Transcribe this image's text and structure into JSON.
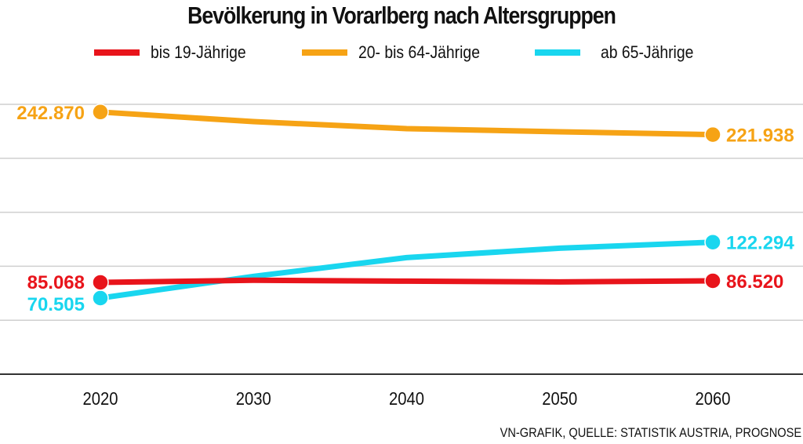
{
  "chart_data": {
    "type": "line",
    "title": "Bevölkerung in Vorarlberg nach Altersgruppen",
    "xlabel": "",
    "ylabel": "",
    "x": [
      2020,
      2030,
      2040,
      2050,
      2060
    ],
    "x_tick_labels": [
      "2020",
      "2030",
      "2040",
      "2050",
      "2060"
    ],
    "ylim": [
      0,
      250000
    ],
    "y_gridlines": [
      0,
      50000,
      100000,
      150000,
      200000,
      250000
    ],
    "grid": true,
    "legend_position": "top",
    "series": [
      {
        "name": "bis 19-Jährige",
        "color": "#e8141b",
        "values": [
          85068,
          87000,
          86200,
          85500,
          86520
        ],
        "start_label": "85.068",
        "end_label": "86.520"
      },
      {
        "name": "20- bis 64-Jährige",
        "color": "#f6a315",
        "values": [
          242870,
          234000,
          227500,
          224600,
          221938
        ],
        "start_label": "242.870",
        "end_label": "221.938"
      },
      {
        "name": "ab 65-Jährige",
        "color": "#19d6ef",
        "values": [
          70505,
          90600,
          108000,
          116700,
          122294
        ],
        "start_label": "70.505",
        "end_label": "122.294"
      }
    ],
    "source": "VN-GRAFIK, QUELLE: STATISTIK AUSTRIA, PROGNOSE"
  }
}
